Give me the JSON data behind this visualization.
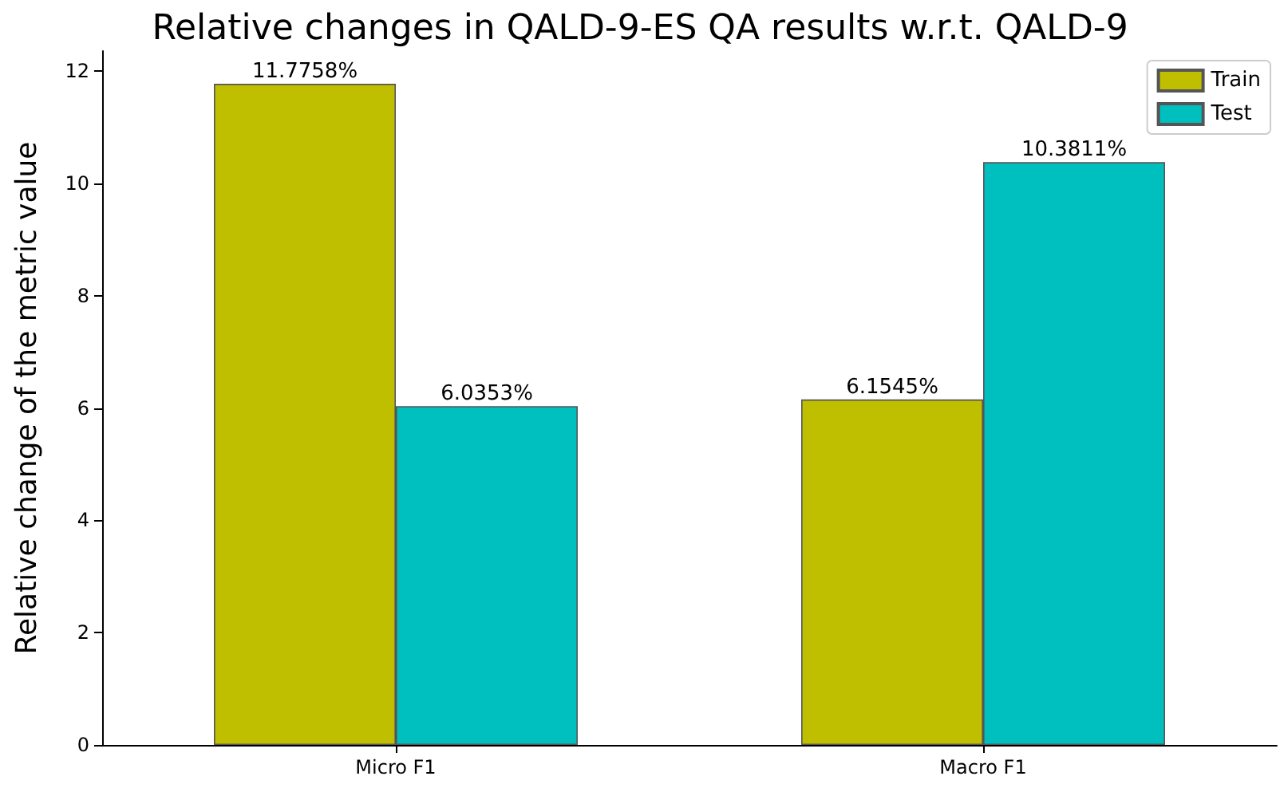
{
  "chart_data": {
    "type": "bar",
    "title": "Relative changes in QALD-9-ES QA results w.r.t. QALD-9",
    "ylabel": "Relative change of the metric value",
    "categories": [
      "Micro F1",
      "Macro F1"
    ],
    "series": [
      {
        "name": "Train",
        "color": "#bfbf00",
        "values": [
          11.7758,
          6.1545
        ],
        "value_labels": [
          "11.7758%",
          "6.1545%"
        ]
      },
      {
        "name": "Test",
        "color": "#00bfbf",
        "values": [
          6.0353,
          10.3811
        ],
        "value_labels": [
          "6.0353%",
          "10.3811%"
        ]
      }
    ],
    "ylim": [
      0,
      12.36
    ],
    "yticks": [
      0,
      2,
      4,
      6,
      8,
      10,
      12
    ],
    "grid": false,
    "legend": "top right"
  }
}
